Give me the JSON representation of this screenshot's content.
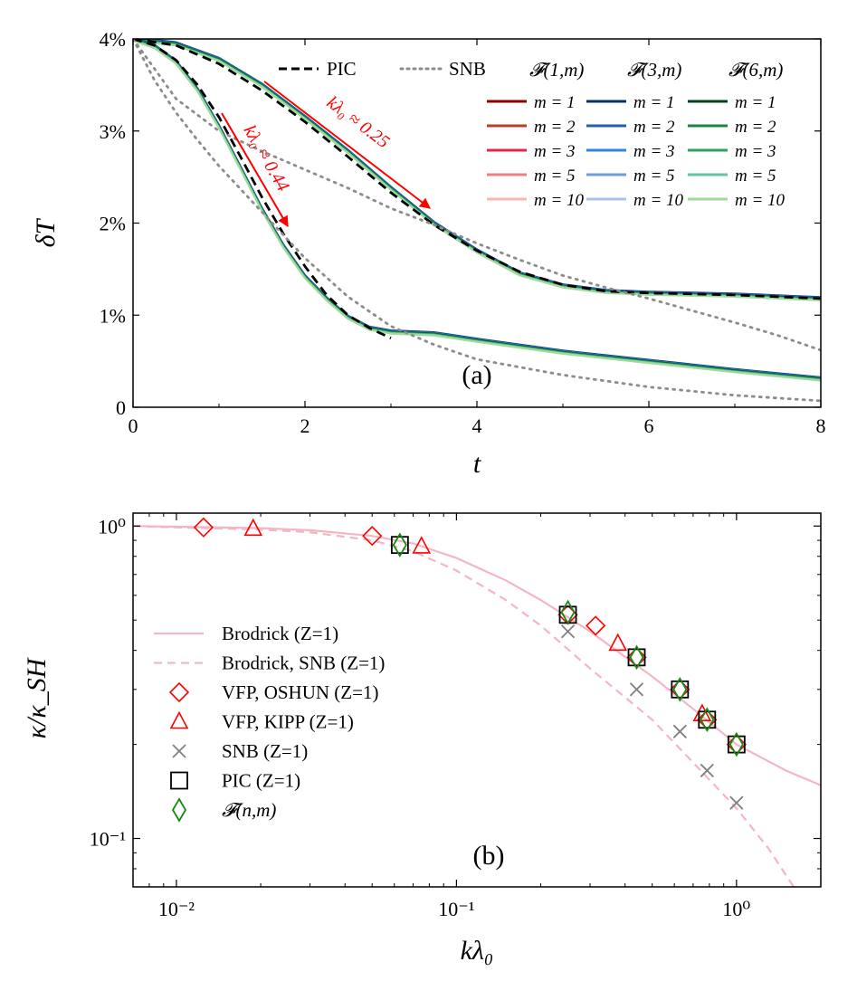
{
  "chart_data": [
    {
      "panel": "(a)",
      "type": "line",
      "xlabel": "t",
      "ylabel": "δT",
      "xlim": [
        0,
        8
      ],
      "ylim": [
        0,
        4
      ],
      "xticks": [
        "0",
        "2",
        "4",
        "6",
        "8"
      ],
      "yticks": [
        "0",
        "1%",
        "2%",
        "3%",
        "4%"
      ],
      "grid": false,
      "legend": {
        "placement": "top-right",
        "entries": [
          "PIC",
          "SNB"
        ],
        "column_headers": [
          "𝓕(1,m)",
          "𝓕(3,m)",
          "𝓕(6,m)"
        ],
        "m_labels": [
          "m = 1",
          "m = 2",
          "m = 3",
          "m = 5",
          "m = 10"
        ],
        "colors_F1": [
          "#8b0000",
          "#c0392b",
          "#e0284a",
          "#f08080",
          "#f5b7b1"
        ],
        "colors_F3": [
          "#08306b",
          "#1f5fb4",
          "#2e86de",
          "#6f9fd8",
          "#a9c4e6"
        ],
        "colors_F6": [
          "#00441b",
          "#17873d",
          "#2ca25f",
          "#66c2a4",
          "#a1d99b"
        ]
      },
      "annotations": [
        {
          "text": "kλ₀ ≈ 0.25"
        },
        {
          "text": "kλ₀ ≈ 0.44"
        }
      ],
      "series": [
        {
          "name": "F-model, kλ₀≈0.25",
          "style": "solid",
          "x": [
            0,
            0.5,
            1,
            1.5,
            2,
            2.5,
            3,
            3.5,
            4,
            4.5,
            5,
            5.5,
            6,
            6.5,
            7,
            7.5,
            8
          ],
          "values": [
            4.0,
            3.95,
            3.78,
            3.5,
            3.15,
            2.78,
            2.38,
            2.0,
            1.7,
            1.45,
            1.32,
            1.26,
            1.24,
            1.23,
            1.22,
            1.2,
            1.18
          ]
        },
        {
          "name": "PIC",
          "style": "dashed",
          "x": [
            0,
            0.5,
            1,
            1.5,
            2,
            2.5,
            3,
            3.5,
            4,
            4.5,
            5,
            5.5,
            6,
            6.5,
            7,
            7.5,
            8
          ],
          "values": [
            4.0,
            3.93,
            3.73,
            3.44,
            3.1,
            2.72,
            2.33,
            1.98,
            1.7,
            1.47,
            1.33,
            1.26,
            1.24,
            1.23,
            1.22,
            1.2,
            1.18
          ]
        },
        {
          "name": "SNB",
          "style": "dotted",
          "x": [
            0,
            0.5,
            1,
            1.5,
            2,
            2.5,
            3,
            3.5,
            4,
            4.5,
            5,
            5.5,
            6,
            6.5,
            7,
            7.5,
            8
          ],
          "values": [
            4.0,
            3.35,
            3.0,
            2.78,
            2.58,
            2.38,
            2.16,
            1.98,
            1.78,
            1.6,
            1.43,
            1.3,
            1.18,
            1.05,
            0.92,
            0.78,
            0.62
          ]
        },
        {
          "name": "F-model, kλ₀≈0.44",
          "style": "solid",
          "x": [
            0,
            0.25,
            0.5,
            0.75,
            1,
            1.25,
            1.5,
            1.75,
            2,
            2.25,
            2.5,
            2.75,
            3,
            3.5,
            4,
            5,
            6,
            7,
            8
          ],
          "values": [
            4.0,
            3.92,
            3.75,
            3.45,
            3.05,
            2.6,
            2.15,
            1.75,
            1.42,
            1.18,
            0.98,
            0.86,
            0.82,
            0.8,
            0.73,
            0.6,
            0.5,
            0.4,
            0.31
          ]
        },
        {
          "name": "PIC",
          "style": "dashed",
          "x": [
            0,
            0.25,
            0.5,
            0.75,
            1,
            1.25,
            1.5,
            1.75,
            2,
            2.25,
            2.5,
            2.75,
            3
          ],
          "values": [
            4.0,
            3.93,
            3.77,
            3.5,
            3.15,
            2.72,
            2.28,
            1.88,
            1.53,
            1.22,
            1.0,
            0.86,
            0.75
          ]
        },
        {
          "name": "SNB",
          "style": "dotted",
          "x": [
            0,
            0.25,
            0.5,
            0.75,
            1,
            1.5,
            2,
            2.5,
            3,
            3.5,
            4,
            5,
            6,
            7,
            8
          ],
          "values": [
            4.0,
            3.55,
            3.2,
            2.9,
            2.62,
            2.12,
            1.62,
            1.2,
            0.88,
            0.68,
            0.52,
            0.35,
            0.22,
            0.13,
            0.07
          ]
        }
      ]
    },
    {
      "panel": "(b)",
      "type": "scatter",
      "xlabel": "kλ₀",
      "ylabel": "κ/κ_SH",
      "xscale": "log",
      "yscale": "log",
      "xlim": [
        0.007,
        2.0
      ],
      "ylim": [
        0.07,
        1.1
      ],
      "xticks": [
        "10⁻²",
        "10⁻¹",
        "10⁰"
      ],
      "yticks": [
        "10⁻¹",
        "10⁰"
      ],
      "grid": false,
      "legend": {
        "placement": "center-left",
        "entries": [
          "Brodrick (Z=1)",
          "Brodrick, SNB (Z=1)",
          "VFP, OSHUN (Z=1)",
          "VFP, KIPP (Z=1)",
          "SNB (Z=1)",
          "PIC (Z=1)",
          "𝓕(n,m)"
        ]
      },
      "series": [
        {
          "name": "Brodrick (Z=1)",
          "style": "solid-line",
          "color": "#f4b6c2",
          "x": [
            0.007,
            0.01,
            0.02,
            0.03,
            0.05,
            0.07,
            0.1,
            0.15,
            0.2,
            0.3,
            0.5,
            0.7,
            1.0,
            1.5,
            2.0
          ],
          "values": [
            1.0,
            0.995,
            0.985,
            0.97,
            0.93,
            0.88,
            0.79,
            0.67,
            0.58,
            0.46,
            0.33,
            0.26,
            0.2,
            0.165,
            0.148
          ]
        },
        {
          "name": "Brodrick, SNB (Z=1)",
          "style": "dashed-line",
          "color": "#f4b6c2",
          "x": [
            0.007,
            0.01,
            0.02,
            0.03,
            0.05,
            0.07,
            0.1,
            0.15,
            0.2,
            0.3,
            0.5,
            0.7,
            1.0,
            1.3,
            1.6
          ],
          "values": [
            1.0,
            0.99,
            0.975,
            0.955,
            0.9,
            0.83,
            0.72,
            0.58,
            0.48,
            0.35,
            0.24,
            0.175,
            0.125,
            0.093,
            0.07
          ]
        },
        {
          "name": "VFP, OSHUN (Z=1)",
          "marker": "diamond-open",
          "color": "#ff0000",
          "x": [
            0.0125,
            0.05,
            0.25,
            0.314,
            0.44,
            0.628,
            0.785,
            1.0
          ],
          "values": [
            0.99,
            0.93,
            0.52,
            0.48,
            0.38,
            0.3,
            0.24,
            0.2
          ]
        },
        {
          "name": "VFP, KIPP (Z=1)",
          "marker": "triangle-open",
          "color": "#ff0000",
          "x": [
            0.0188,
            0.075,
            0.377,
            0.754
          ],
          "values": [
            0.98,
            0.86,
            0.42,
            0.25
          ]
        },
        {
          "name": "SNB (Z=1)",
          "marker": "x",
          "color": "#808080",
          "x": [
            0.25,
            0.44,
            0.628,
            0.785,
            1.0
          ],
          "values": [
            0.46,
            0.3,
            0.22,
            0.165,
            0.13
          ]
        },
        {
          "name": "PIC (Z=1)",
          "marker": "square-open",
          "color": "#000000",
          "x": [
            0.0628,
            0.25,
            0.44,
            0.628,
            0.785,
            1.0
          ],
          "values": [
            0.87,
            0.52,
            0.38,
            0.3,
            0.24,
            0.2
          ]
        },
        {
          "name": "𝓕(n,m)",
          "marker": "thin-diamond-open",
          "color": "#138a13",
          "x": [
            0.0628,
            0.25,
            0.44,
            0.628,
            0.785,
            1.0
          ],
          "values": [
            0.87,
            0.53,
            0.38,
            0.3,
            0.24,
            0.2
          ]
        }
      ]
    }
  ]
}
